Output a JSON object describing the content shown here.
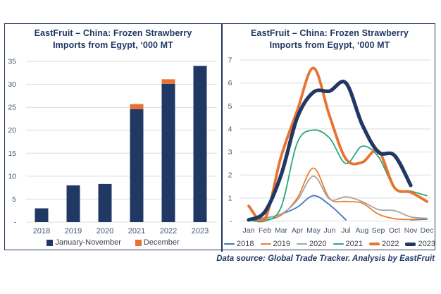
{
  "source_note": "Data source: Global Trade Tracker. Analysis by EastFruit",
  "palette": {
    "navy": "#1F3864",
    "orange": "#E97132",
    "blue": "#4472C4",
    "thin_orange": "#ED7D31",
    "gray": "#A5A5A5",
    "green": "#2AA87C",
    "gridline": "#DCDCDC",
    "axis_text": "#44546A",
    "border": "#24355E"
  },
  "chart_data": [
    {
      "type": "bar",
      "stacked": true,
      "title": "EastFruit – China: Frozen Strawberry Imports from Egypt, ‘000 MT",
      "title_lines": [
        "EastFruit – China: Frozen Strawberry",
        "Imports from Egypt, ‘000 MT"
      ],
      "categories": [
        "2018",
        "2019",
        "2020",
        "2021",
        "2022",
        "2023"
      ],
      "series": [
        {
          "name": "January-November",
          "color": "#1F3864",
          "values": [
            3.0,
            8.0,
            8.3,
            24.6,
            30.1,
            34.0
          ]
        },
        {
          "name": "December",
          "color": "#E97132",
          "values": [
            0,
            0,
            0,
            1.1,
            1.0,
            0
          ]
        }
      ],
      "ylim": [
        0,
        35
      ],
      "ytick_step": 5,
      "ytick_labels": [
        "-",
        "5",
        "10",
        "15",
        "20",
        "25",
        "30",
        "35"
      ],
      "grid": true,
      "legend_position": "bottom"
    },
    {
      "type": "line",
      "smooth": true,
      "title": "EastFruit – China: Frozen Strawberry Imports from Egypt, ‘000 MT",
      "title_lines": [
        "EastFruit – China: Frozen Strawberry",
        "Imports from Egypt, ‘000 MT"
      ],
      "categories": [
        "Jan",
        "Feb",
        "Mar",
        "Apr",
        "May",
        "Jun",
        "Jul",
        "Aug",
        "Sep",
        "Oct",
        "Nov",
        "Dec"
      ],
      "series": [
        {
          "name": "2018",
          "color": "#4472C4",
          "stroke_width": 1.8,
          "values": [
            0.07,
            0.12,
            0.3,
            0.6,
            1.1,
            0.7,
            0.05,
            null,
            null,
            null,
            0.05,
            0.08
          ]
        },
        {
          "name": "2019",
          "color": "#ED7D31",
          "stroke_width": 1.8,
          "values": [
            0.05,
            0.05,
            0.25,
            1.0,
            2.3,
            0.97,
            0.85,
            0.78,
            0.3,
            0.1,
            0.07,
            0.12
          ]
        },
        {
          "name": "2020",
          "color": "#A5A5A5",
          "stroke_width": 1.8,
          "values": [
            0.12,
            0.15,
            0.3,
            0.9,
            1.95,
            0.95,
            1.05,
            0.85,
            0.5,
            0.45,
            0.18,
            0.12
          ]
        },
        {
          "name": "2021",
          "color": "#2AA87C",
          "stroke_width": 1.8,
          "values": [
            0.05,
            0.0,
            0.6,
            3.4,
            3.95,
            3.6,
            2.5,
            3.25,
            2.8,
            1.45,
            1.3,
            1.1
          ]
        },
        {
          "name": "2022",
          "color": "#E97132",
          "stroke_width": 3.8,
          "values": [
            0.65,
            0.1,
            2.8,
            4.8,
            6.65,
            4.55,
            2.7,
            2.55,
            3.05,
            1.45,
            1.25,
            0.85
          ]
        },
        {
          "name": "2023",
          "color": "#1F3864",
          "stroke_width": 5.2,
          "values": [
            0.05,
            0.4,
            2.0,
            4.5,
            5.6,
            5.65,
            6.0,
            4.2,
            3.0,
            2.85,
            1.55,
            null
          ]
        }
      ],
      "ylim": [
        0,
        7
      ],
      "ytick_step": 1,
      "ytick_labels": [
        "-",
        "1",
        "2",
        "3",
        "4",
        "5",
        "6",
        "7"
      ],
      "grid": true,
      "legend_position": "bottom"
    }
  ]
}
